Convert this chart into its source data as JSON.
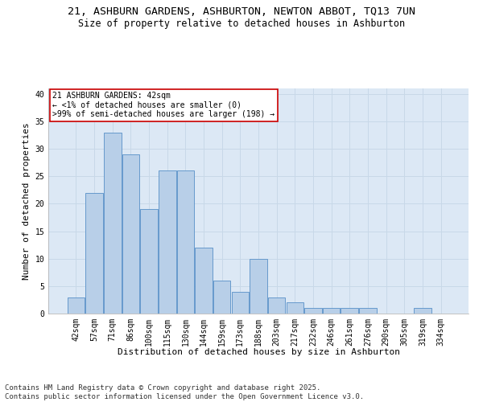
{
  "title_line1": "21, ASHBURN GARDENS, ASHBURTON, NEWTON ABBOT, TQ13 7UN",
  "title_line2": "Size of property relative to detached houses in Ashburton",
  "xlabel": "Distribution of detached houses by size in Ashburton",
  "ylabel": "Number of detached properties",
  "categories": [
    "42sqm",
    "57sqm",
    "71sqm",
    "86sqm",
    "100sqm",
    "115sqm",
    "130sqm",
    "144sqm",
    "159sqm",
    "173sqm",
    "188sqm",
    "203sqm",
    "217sqm",
    "232sqm",
    "246sqm",
    "261sqm",
    "276sqm",
    "290sqm",
    "305sqm",
    "319sqm",
    "334sqm"
  ],
  "values": [
    3,
    22,
    33,
    29,
    19,
    26,
    26,
    12,
    6,
    4,
    10,
    3,
    2,
    1,
    1,
    1,
    1,
    0,
    0,
    1,
    0
  ],
  "bar_color": "#b8cfe8",
  "bar_edge_color": "#6699cc",
  "annotation_text": "21 ASHBURN GARDENS: 42sqm\n← <1% of detached houses are smaller (0)\n>99% of semi-detached houses are larger (198) →",
  "annotation_box_color": "#ffffff",
  "annotation_box_edge_color": "#cc0000",
  "ylim": [
    0,
    41
  ],
  "yticks": [
    0,
    5,
    10,
    15,
    20,
    25,
    30,
    35,
    40
  ],
  "grid_color": "#c8d8e8",
  "bg_color": "#dce8f5",
  "background_color": "#ffffff",
  "footer_line1": "Contains HM Land Registry data © Crown copyright and database right 2025.",
  "footer_line2": "Contains public sector information licensed under the Open Government Licence v3.0.",
  "title_fontsize": 9.5,
  "subtitle_fontsize": 8.5,
  "axis_label_fontsize": 8,
  "tick_fontsize": 7,
  "annotation_fontsize": 7,
  "footer_fontsize": 6.5
}
